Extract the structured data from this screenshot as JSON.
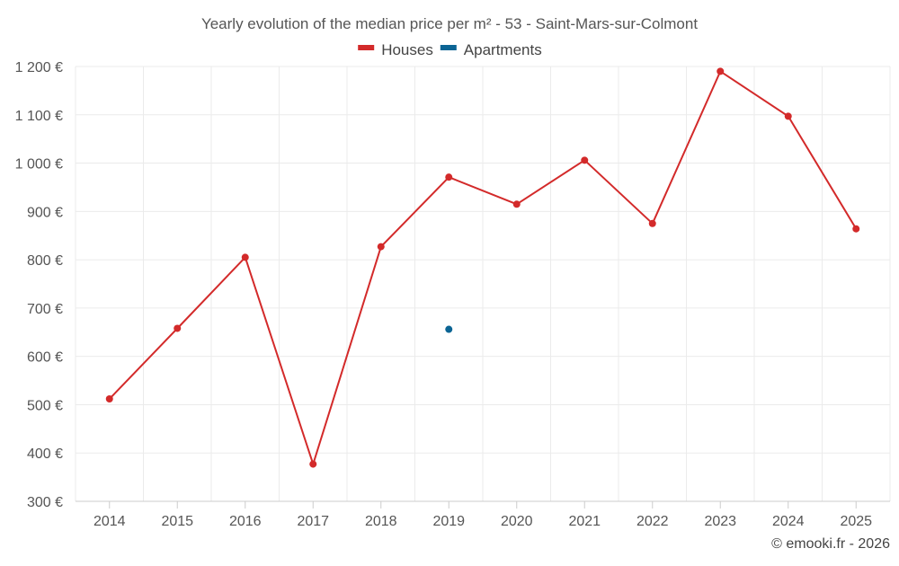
{
  "chart_data": {
    "type": "line",
    "title": "Yearly evolution of the median price per m² - 53 - Saint-Mars-sur-Colmont",
    "xlabel": "",
    "ylabel": "",
    "categories": [
      "2014",
      "2015",
      "2016",
      "2017",
      "2018",
      "2019",
      "2020",
      "2021",
      "2022",
      "2023",
      "2024",
      "2025"
    ],
    "ylim": [
      300,
      1200
    ],
    "yticks": [
      300,
      400,
      500,
      600,
      700,
      800,
      900,
      1000,
      1100,
      1200
    ],
    "ytick_labels": [
      "300 €",
      "400 €",
      "500 €",
      "600 €",
      "700 €",
      "800 €",
      "900 €",
      "1 000 €",
      "1 100 €",
      "1 200 €"
    ],
    "grid": true,
    "legend_position": "top-center",
    "series": [
      {
        "name": "Houses",
        "color": "#d32a2a",
        "values": [
          512,
          658,
          805,
          377,
          827,
          971,
          915,
          1006,
          875,
          1190,
          1097,
          864
        ]
      },
      {
        "name": "Apartments",
        "color": "#0b6494",
        "values": [
          null,
          null,
          null,
          null,
          null,
          656,
          null,
          null,
          null,
          null,
          null,
          null
        ]
      }
    ],
    "credit": "© emooki.fr - 2026"
  }
}
